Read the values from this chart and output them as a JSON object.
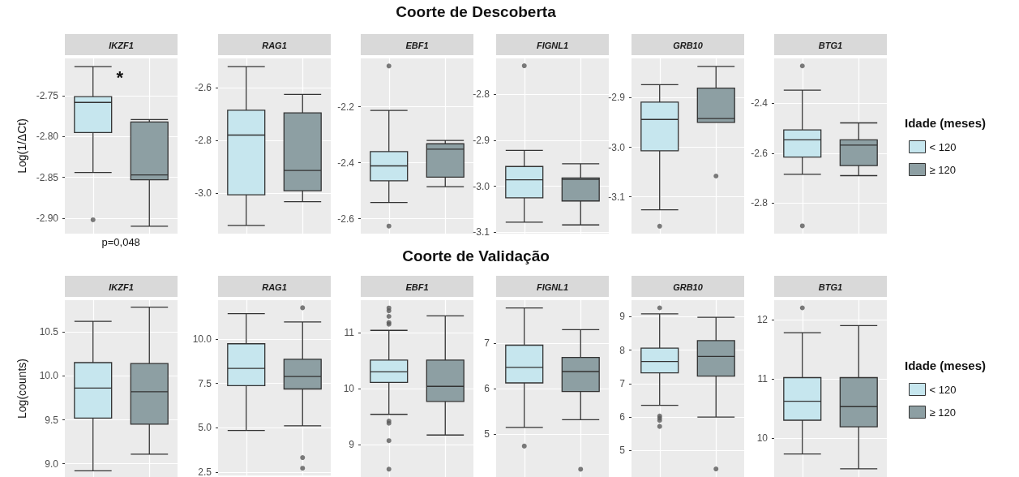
{
  "chart_data": [
    {
      "type": "box",
      "title": "IKZF1",
      "ylabel": "Log(1/ΔCt)",
      "categories": [
        null,
        null
      ],
      "tick_labels": "y",
      "grid": true,
      "legend": false,
      "ylim": [
        -2.919,
        -2.704
      ],
      "yticks": [
        {
          "value": -2.9,
          "label": "-2.90"
        },
        {
          "value": -2.85,
          "label": "-2.85"
        },
        {
          "value": -2.8,
          "label": "-2.80"
        },
        {
          "value": -2.75,
          "label": "-2.75"
        }
      ],
      "annotations": [
        "*",
        "p=0,048"
      ],
      "series": [
        {
          "color": "#c6e6ee",
          "boxes": [
            {
              "low": -2.844,
              "q1": -2.795,
              "median": -2.758,
              "q3": -2.751,
              "high": -2.714,
              "outliers": [
                -2.902
              ]
            },
            null
          ]
        },
        {
          "color": "#8d9fa3",
          "boxes": [
            null,
            {
              "low": -2.91,
              "q1": -2.853,
              "median": -2.847,
              "q3": -2.782,
              "high": -2.779
            }
          ]
        }
      ]
    },
    {
      "type": "box",
      "title": "RAG1",
      "categories": [
        null,
        null
      ],
      "tick_labels": "y",
      "grid": true,
      "legend": false,
      "ylim": [
        -3.152,
        -2.489
      ],
      "yticks": [
        {
          "value": -3.0,
          "label": "-3.0"
        },
        {
          "value": -2.8,
          "label": "-2.8"
        },
        {
          "value": -2.6,
          "label": "-2.6"
        }
      ],
      "series": [
        {
          "color": "#c6e6ee",
          "boxes": [
            {
              "low": -3.121,
              "q1": -3.005,
              "median": -2.779,
              "q3": -2.685,
              "high": -2.52
            },
            null
          ]
        },
        {
          "color": "#8d9fa3",
          "boxes": [
            null,
            {
              "low": -3.031,
              "q1": -2.99,
              "median": -2.913,
              "q3": -2.695,
              "high": -2.625
            }
          ]
        }
      ]
    },
    {
      "type": "box",
      "title": "EBF1",
      "subtitle": "Coorte de Descoberta",
      "categories": [
        null,
        null
      ],
      "tick_labels": "y",
      "grid": true,
      "legend": false,
      "ylim": [
        -2.653,
        -2.027
      ],
      "yticks": [
        {
          "value": -2.6,
          "label": "-2.6"
        },
        {
          "value": -2.4,
          "label": "-2.4"
        },
        {
          "value": -2.2,
          "label": "-2.2"
        }
      ],
      "series": [
        {
          "color": "#c6e6ee",
          "boxes": [
            {
              "low": -2.542,
              "q1": -2.464,
              "median": -2.411,
              "q3": -2.36,
              "high": -2.213,
              "outliers": [
                -2.054,
                -2.626
              ]
            },
            null
          ]
        },
        {
          "color": "#8d9fa3",
          "boxes": [
            null,
            {
              "low": -2.485,
              "q1": -2.451,
              "median": -2.351,
              "q3": -2.332,
              "high": -2.32
            }
          ]
        }
      ]
    },
    {
      "type": "box",
      "title": "FIGNL1",
      "categories": [
        null,
        null
      ],
      "tick_labels": "y",
      "grid": true,
      "legend": false,
      "ylim": [
        -3.103,
        -2.722
      ],
      "yticks": [
        {
          "value": -3.1,
          "label": "-3.1"
        },
        {
          "value": -3.0,
          "label": "-3.0"
        },
        {
          "value": -2.9,
          "label": "-2.9"
        },
        {
          "value": -2.8,
          "label": "-2.8"
        }
      ],
      "series": [
        {
          "color": "#c6e6ee",
          "boxes": [
            {
              "low": -3.078,
              "q1": -3.025,
              "median": -2.986,
              "q3": -2.957,
              "high": -2.922,
              "outliers": [
                -2.738
              ]
            },
            null
          ]
        },
        {
          "color": "#8d9fa3",
          "boxes": [
            null,
            {
              "low": -3.084,
              "q1": -3.032,
              "median": -2.985,
              "q3": -2.982,
              "high": -2.951
            }
          ]
        }
      ]
    },
    {
      "type": "box",
      "title": "GRB10",
      "categories": [
        null,
        null
      ],
      "tick_labels": "y",
      "grid": true,
      "legend": false,
      "ylim": [
        -3.174,
        -2.821
      ],
      "yticks": [
        {
          "value": -3.1,
          "label": "-3.1"
        },
        {
          "value": -3.0,
          "label": "-3.0"
        },
        {
          "value": -2.9,
          "label": "-2.9"
        }
      ],
      "series": [
        {
          "color": "#c6e6ee",
          "boxes": [
            {
              "low": -3.126,
              "q1": -3.007,
              "median": -2.944,
              "q3": -2.909,
              "high": -2.874,
              "outliers": [
                -3.159
              ]
            },
            null
          ]
        },
        {
          "color": "#8d9fa3",
          "boxes": [
            null,
            {
              "low": -2.95,
              "q1": -2.95,
              "median": -2.942,
              "q3": -2.881,
              "high": -2.837,
              "outliers": [
                -3.058
              ]
            }
          ]
        }
      ]
    },
    {
      "type": "box",
      "title": "BTG1",
      "legend_title": "Idade (meses)",
      "categories": [
        null,
        null
      ],
      "tick_labels": "y",
      "grid": true,
      "legend": "right",
      "ylim": [
        -2.922,
        -2.221
      ],
      "yticks": [
        {
          "value": -2.8,
          "label": "-2.8"
        },
        {
          "value": -2.6,
          "label": "-2.6"
        },
        {
          "value": -2.4,
          "label": "-2.4"
        }
      ],
      "series": [
        {
          "name": "< 120",
          "color": "#c6e6ee",
          "boxes": [
            {
              "low": -2.685,
              "q1": -2.616,
              "median": -2.547,
              "q3": -2.507,
              "high": -2.348,
              "outliers": [
                -2.251,
                -2.891
              ]
            },
            null
          ]
        },
        {
          "name": "≥ 120",
          "color": "#8d9fa3",
          "boxes": [
            null,
            {
              "low": -2.69,
              "q1": -2.65,
              "median": -2.568,
              "q3": -2.547,
              "high": -2.479
            }
          ]
        }
      ]
    },
    {
      "type": "box",
      "title": "IKZF1",
      "ylabel": "Log(counts)",
      "categories": [
        null,
        null
      ],
      "tick_labels": "y",
      "grid": true,
      "legend": false,
      "ylim": [
        8.85,
        10.86
      ],
      "yticks": [
        {
          "value": 9,
          "label": "9.0"
        },
        {
          "value": 9.5,
          "label": "9.5"
        },
        {
          "value": 10,
          "label": "10.0"
        },
        {
          "value": 10.5,
          "label": "10.5"
        }
      ],
      "series": [
        {
          "color": "#c6e6ee",
          "boxes": [
            {
              "low": 8.92,
              "q1": 9.52,
              "median": 9.86,
              "q3": 10.15,
              "high": 10.62
            },
            null
          ]
        },
        {
          "color": "#8d9fa3",
          "boxes": [
            null,
            {
              "low": 9.11,
              "q1": 9.45,
              "median": 9.82,
              "q3": 10.14,
              "high": 10.78
            }
          ]
        }
      ]
    },
    {
      "type": "box",
      "title": "RAG1",
      "categories": [
        null,
        null
      ],
      "tick_labels": "y",
      "grid": true,
      "legend": false,
      "ylim": [
        2.3,
        12.2
      ],
      "yticks": [
        {
          "value": 2.5,
          "label": "2.5"
        },
        {
          "value": 5,
          "label": "5.0"
        },
        {
          "value": 7.5,
          "label": "7.5"
        },
        {
          "value": 10,
          "label": "10.0"
        }
      ],
      "series": [
        {
          "color": "#c6e6ee",
          "boxes": [
            {
              "low": 4.85,
              "q1": 7.38,
              "median": 8.35,
              "q3": 9.74,
              "high": 11.44
            },
            null
          ]
        },
        {
          "color": "#8d9fa3",
          "boxes": [
            null,
            {
              "low": 5.11,
              "q1": 7.19,
              "median": 7.89,
              "q3": 8.87,
              "high": 10.97,
              "outliers": [
                11.77,
                3.32,
                2.72
              ]
            }
          ]
        }
      ]
    },
    {
      "type": "box",
      "title": "EBF1",
      "subtitle": "Coorte de Validação",
      "categories": [
        null,
        null
      ],
      "tick_labels": "y",
      "grid": true,
      "legend": false,
      "ylim": [
        8.42,
        11.58
      ],
      "yticks": [
        9,
        10,
        11
      ],
      "series": [
        {
          "color": "#c6e6ee",
          "boxes": [
            {
              "low": 9.54,
              "q1": 10.11,
              "median": 10.3,
              "q3": 10.51,
              "high": 11.04,
              "outliers": [
                11.44,
                11.39,
                11.29,
                11.18,
                11.15,
                9.42,
                9.38,
                9.07,
                8.56
              ]
            },
            null
          ]
        },
        {
          "color": "#8d9fa3",
          "boxes": [
            null,
            {
              "low": 9.17,
              "q1": 9.77,
              "median": 10.04,
              "q3": 10.51,
              "high": 11.3
            }
          ]
        }
      ]
    },
    {
      "type": "box",
      "title": "FIGNL1",
      "categories": [
        null,
        null
      ],
      "tick_labels": "y",
      "grid": true,
      "legend": false,
      "ylim": [
        4.06,
        7.95
      ],
      "yticks": [
        5,
        6,
        7
      ],
      "series": [
        {
          "color": "#c6e6ee",
          "boxes": [
            {
              "low": 5.15,
              "q1": 6.13,
              "median": 6.47,
              "q3": 6.96,
              "high": 7.78,
              "outliers": [
                4.74
              ]
            },
            null
          ]
        },
        {
          "color": "#8d9fa3",
          "boxes": [
            null,
            {
              "low": 5.32,
              "q1": 5.94,
              "median": 6.38,
              "q3": 6.69,
              "high": 7.3,
              "outliers": [
                4.23
              ]
            }
          ]
        }
      ]
    },
    {
      "type": "box",
      "title": "GRB10",
      "categories": [
        null,
        null
      ],
      "tick_labels": "y",
      "grid": true,
      "legend": false,
      "ylim": [
        4.21,
        9.49
      ],
      "yticks": [
        5,
        6,
        7,
        8,
        9
      ],
      "series": [
        {
          "color": "#c6e6ee",
          "boxes": [
            {
              "low": 6.35,
              "q1": 7.32,
              "median": 7.66,
              "q3": 8.06,
              "high": 9.08,
              "outliers": [
                9.26,
                6.03,
                5.97,
                5.9,
                5.72
              ]
            },
            null
          ]
        },
        {
          "color": "#8d9fa3",
          "boxes": [
            null,
            {
              "low": 6.0,
              "q1": 7.22,
              "median": 7.81,
              "q3": 8.28,
              "high": 8.98,
              "outliers": [
                4.45
              ]
            }
          ]
        }
      ]
    },
    {
      "type": "box",
      "title": "BTG1",
      "legend_title": "Idade (meses)",
      "categories": [
        null,
        null
      ],
      "tick_labels": "y",
      "grid": true,
      "legend": "right",
      "ylim": [
        9.34,
        12.33
      ],
      "yticks": [
        10,
        11,
        12
      ],
      "series": [
        {
          "name": "< 120",
          "color": "#c6e6ee",
          "boxes": [
            {
              "low": 9.73,
              "q1": 10.3,
              "median": 10.62,
              "q3": 11.02,
              "high": 11.78,
              "outliers": [
                12.2
              ]
            },
            null
          ]
        },
        {
          "name": "≥ 120",
          "color": "#8d9fa3",
          "boxes": [
            null,
            {
              "low": 9.48,
              "q1": 10.19,
              "median": 10.53,
              "q3": 11.02,
              "high": 11.9
            }
          ]
        }
      ]
    }
  ]
}
